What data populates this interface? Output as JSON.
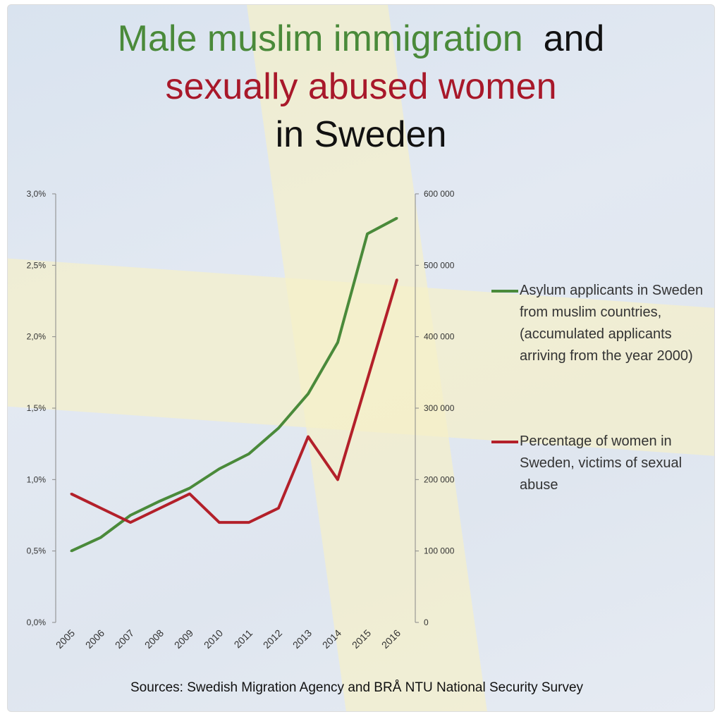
{
  "title": {
    "part1": "Male muslim immigration",
    "part2": "and",
    "part3": "sexually abused women",
    "part4": "in Sweden"
  },
  "colors": {
    "green": "#4a8a3a",
    "red": "#b3202a"
  },
  "source": "Sources: Swedish Migration Agency and BRÅ NTU National Security Survey",
  "chart_data": {
    "type": "line",
    "title": "Male muslim immigration and sexually abused women in Sweden",
    "x": [
      "2005",
      "2006",
      "2007",
      "2008",
      "2009",
      "2010",
      "2011",
      "2012",
      "2013",
      "2014",
      "2015",
      "2016"
    ],
    "left_axis": {
      "ylim": [
        0,
        3.0
      ],
      "ticks": [
        "0,0%",
        "0,5%",
        "1,0%",
        "1,5%",
        "2,0%",
        "2,5%",
        "3,0%"
      ]
    },
    "right_axis": {
      "ylim": [
        0,
        600000
      ],
      "ticks": [
        "0",
        "100 000",
        "200 000",
        "300 000",
        "400 000",
        "500 000",
        "600 000"
      ]
    },
    "legend_position": "right",
    "grid": false,
    "series": [
      {
        "name": "Asylum applicants in Sweden from muslim countries, (accumulated applicants arriving from the year 2000)",
        "axis": "right",
        "color": "#4a8a3a",
        "values": [
          100000,
          119000,
          150000,
          170000,
          188000,
          215000,
          236000,
          272000,
          320000,
          392000,
          544000,
          566000
        ]
      },
      {
        "name": "Percentage of women in Sweden, victims of sexual abuse",
        "axis": "left",
        "color": "#b3202a",
        "values": [
          0.9,
          0.8,
          0.7,
          0.8,
          0.9,
          0.7,
          0.7,
          0.8,
          1.3,
          1.0,
          1.7,
          2.4
        ]
      }
    ]
  }
}
